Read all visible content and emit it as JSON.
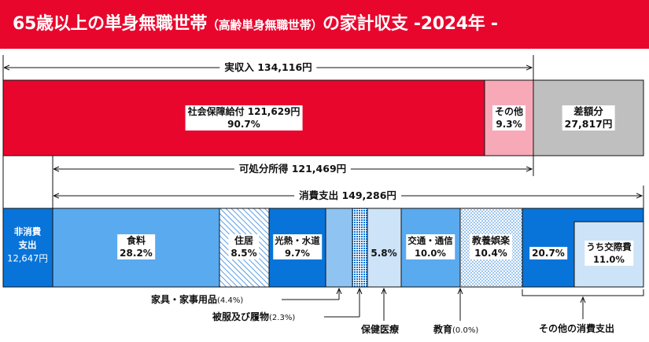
{
  "title": {
    "main_prefix": "65歳以上の単身無職世帯",
    "main_paren": "（高齢単身無職世帯）",
    "main_suffix": "の家計収支 -2024年 -"
  },
  "chart_data": {
    "type": "bar",
    "unit": "円",
    "income": {
      "label": "実収入 134,116円",
      "total": 134116,
      "parts": [
        {
          "name": "社会保障給付",
          "label": "社会保障給付 121,629円",
          "value": 121629,
          "pct_label": "90.7%"
        },
        {
          "name": "その他",
          "label": "その他",
          "value": 12487,
          "pct_label": "9.3%"
        }
      ],
      "deficit": {
        "label": "差額分",
        "value_label": "27,817円",
        "value": 27817
      }
    },
    "disposable_income": {
      "label": "可処分所得 121,469円",
      "value": 121469
    },
    "consumption": {
      "label": "消費支出 149,286円",
      "value": 149286
    },
    "non_consumption": {
      "label1": "非消費",
      "label2": "支出",
      "value_label": "12,647円",
      "value": 12647
    },
    "expenditure": [
      {
        "name": "食料",
        "pct": 28.2,
        "pct_label": "28.2%"
      },
      {
        "name": "住居",
        "pct": 8.5,
        "pct_label": "8.5%"
      },
      {
        "name": "光熱・水道",
        "pct": 9.7,
        "pct_label": "9.7%"
      },
      {
        "name": "家具・家事用品",
        "pct": 4.4,
        "note": "(4.4%)"
      },
      {
        "name": "被服及び履物",
        "pct": 2.3,
        "note": "(2.3%)"
      },
      {
        "name": "保健医療",
        "pct": 5.8,
        "pct_label": "5.8%"
      },
      {
        "name": "交通・通信",
        "pct": 10.0,
        "pct_label": "10.0%"
      },
      {
        "name": "教養娯楽",
        "pct": 10.4,
        "pct_label": "10.4%"
      },
      {
        "name": "教育",
        "pct": 0.0,
        "note": "(0.0%)"
      },
      {
        "name": "その他の消費支出",
        "pct": 20.7,
        "pct_label": "20.7%"
      },
      {
        "name": "うち交際費",
        "pct": 11.0,
        "pct_label": "11.0%"
      }
    ]
  },
  "colors": {
    "header": "#e8062d",
    "social_security": "#e8062d",
    "other_income": "#f7a9b8",
    "deficit": "#bfbfbf",
    "blue_dark": "#0874d9",
    "blue_mid": "#5aaaf0",
    "blue_light": "#cde3f7"
  }
}
